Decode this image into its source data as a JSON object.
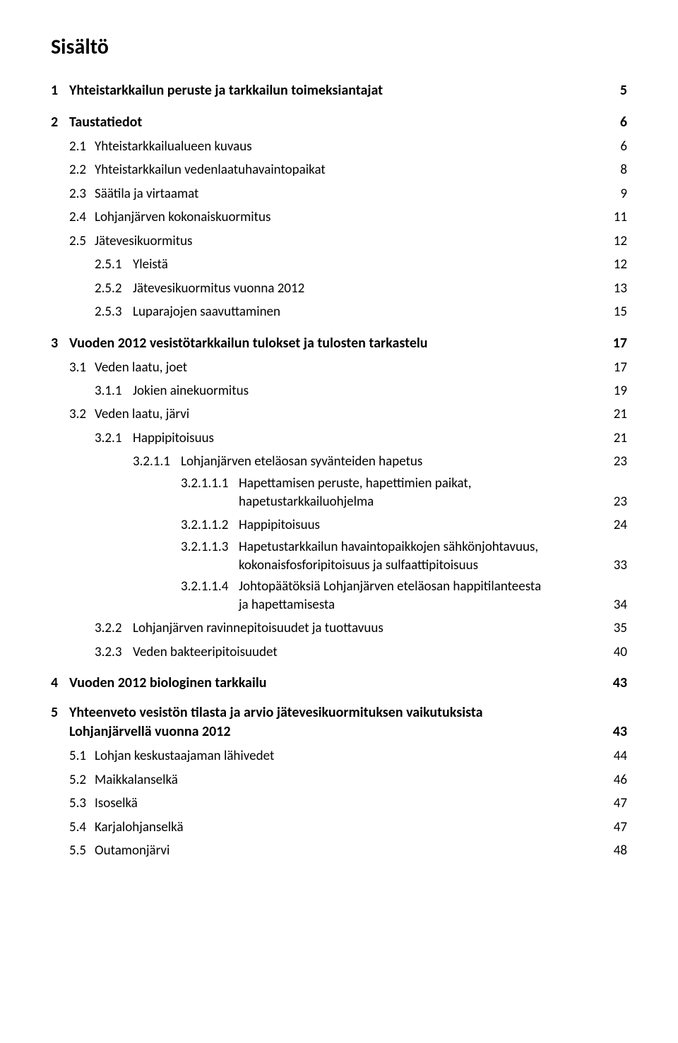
{
  "title": "Sisältö",
  "toc": [
    {
      "level": 1,
      "num": "1",
      "text": "Yhteistarkkailun peruste ja tarkkailun toimeksiantajat",
      "page": "5"
    },
    {
      "level": 1,
      "num": "2",
      "text": "Taustatiedot",
      "page": "6"
    },
    {
      "level": 2,
      "num": "2.1",
      "text": "Yhteistarkkailualueen kuvaus",
      "page": "6"
    },
    {
      "level": 2,
      "num": "2.2",
      "text": "Yhteistarkkailun vedenlaatuhavaintopaikat",
      "page": "8"
    },
    {
      "level": 2,
      "num": "2.3",
      "text": "Säätila ja virtaamat",
      "page": "9"
    },
    {
      "level": 2,
      "num": "2.4",
      "text": "Lohjanjärven kokonaiskuormitus",
      "page": "11"
    },
    {
      "level": 2,
      "num": "2.5",
      "text": "Jätevesikuormitus",
      "page": "12"
    },
    {
      "level": 3,
      "num": "2.5.1",
      "text": "Yleistä",
      "page": "12"
    },
    {
      "level": 3,
      "num": "2.5.2",
      "text": "Jätevesikuormitus vuonna 2012",
      "page": "13"
    },
    {
      "level": 3,
      "num": "2.5.3",
      "text": "Luparajojen saavuttaminen",
      "page": "15"
    },
    {
      "level": 1,
      "num": "3",
      "text": "Vuoden 2012 vesistötarkkailun tulokset ja tulosten tarkastelu",
      "page": "17"
    },
    {
      "level": 2,
      "num": "3.1",
      "text": "Veden laatu, joet",
      "page": "17"
    },
    {
      "level": 3,
      "num": "3.1.1",
      "text": "Jokien ainekuormitus",
      "page": "19"
    },
    {
      "level": 2,
      "num": "3.2",
      "text": "Veden laatu, järvi",
      "page": "21"
    },
    {
      "level": 3,
      "num": "3.2.1",
      "text": "Happipitoisuus",
      "page": "21"
    },
    {
      "level": 4,
      "num": "3.2.1.1",
      "text": "Lohjanjärven eteläosan syvänteiden hapetus",
      "page": "23"
    },
    {
      "level": 5,
      "num": "3.2.1.1.1",
      "text": "Hapettamisen peruste, hapettimien paikat,",
      "text2": "hapetustarkkailuohjelma",
      "page": "23"
    },
    {
      "level": 5,
      "num": "3.2.1.1.2",
      "text": "Happipitoisuus",
      "page": "24"
    },
    {
      "level": 5,
      "num": "3.2.1.1.3",
      "text": "Hapetustarkkailun havaintopaikkojen sähkönjohtavuus,",
      "text2": "kokonaisfosforipitoisuus ja sulfaattipitoisuus",
      "page": "33"
    },
    {
      "level": 5,
      "num": "3.2.1.1.4",
      "text": "Johtopäätöksiä Lohjanjärven eteläosan happitilanteesta",
      "text2": "ja hapettamisesta",
      "page": "34"
    },
    {
      "level": 3,
      "num": "3.2.2",
      "text": "Lohjanjärven ravinnepitoisuudet ja tuottavuus",
      "page": "35"
    },
    {
      "level": 3,
      "num": "3.2.3",
      "text": "Veden bakteeripitoisuudet",
      "page": "40"
    },
    {
      "level": 1,
      "num": "4",
      "text": "Vuoden 2012 biologinen tarkkailu",
      "page": "43"
    },
    {
      "level": 1,
      "num": "5",
      "text": "Yhteenveto vesistön tilasta ja arvio jätevesikuormituksen vaikutuksista",
      "text2": "Lohjanjärvellä vuonna 2012",
      "page": "43"
    },
    {
      "level": 2,
      "num": "5.1",
      "text": "Lohjan keskustaajaman lähivedet",
      "page": "44"
    },
    {
      "level": 2,
      "num": "5.2",
      "text": "Maikkalanselkä",
      "page": "46"
    },
    {
      "level": 2,
      "num": "5.3",
      "text": "Isoselkä",
      "page": "47"
    },
    {
      "level": 2,
      "num": "5.4",
      "text": "Karjalohjanselkä",
      "page": "47"
    },
    {
      "level": 2,
      "num": "5.5",
      "text": "Outamonjärvi",
      "page": "48"
    }
  ]
}
